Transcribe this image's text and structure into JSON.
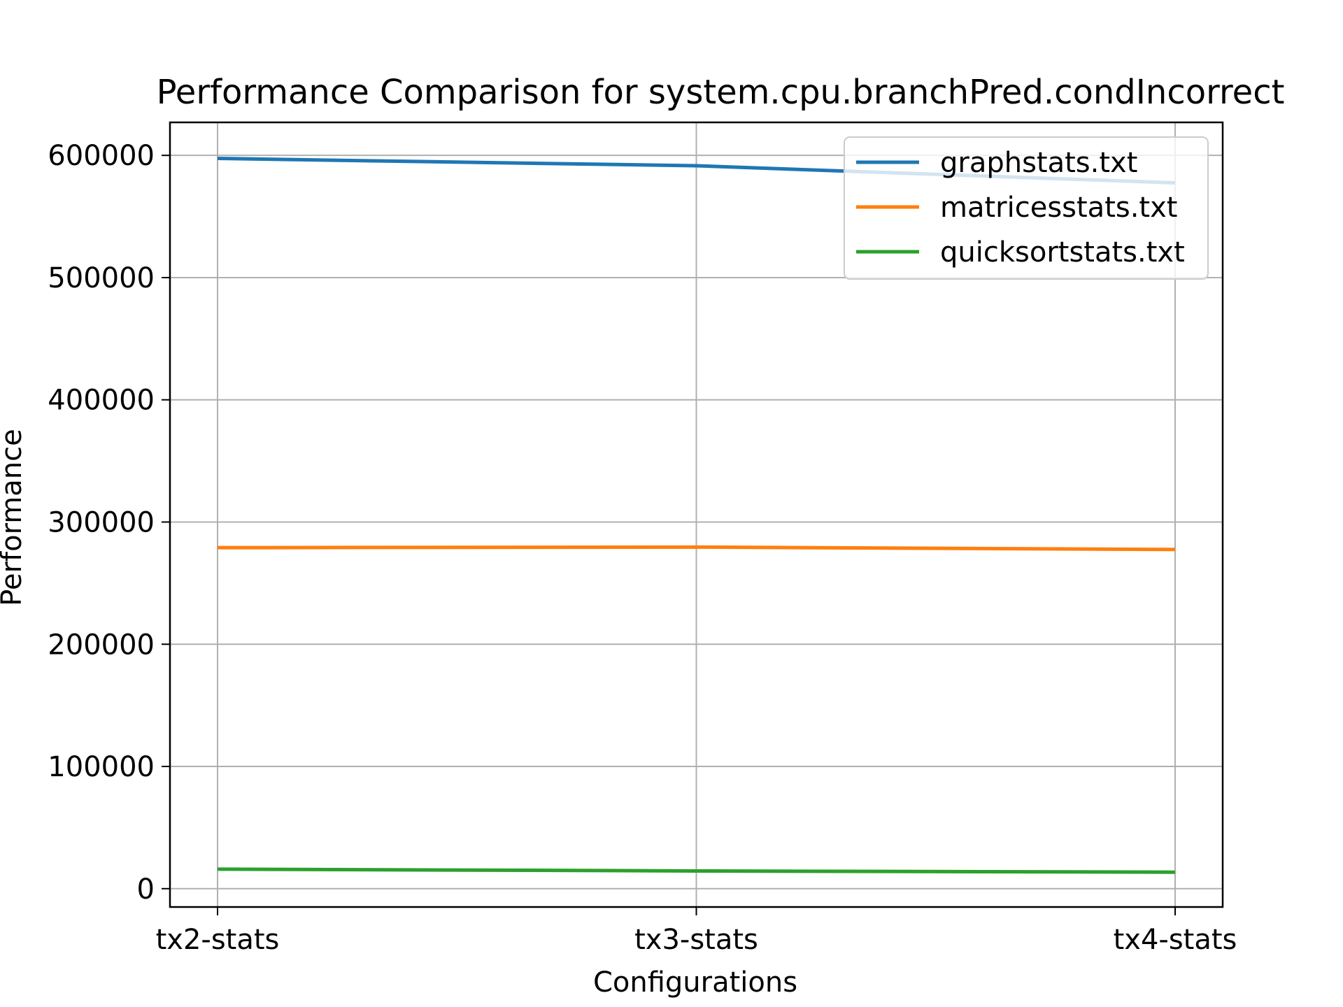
{
  "chart_data": {
    "type": "line",
    "title": "Performance Comparison for system.cpu.branchPred.condIncorrect",
    "xlabel": "Configurations",
    "ylabel": "Performance",
    "categories": [
      "tx2-stats",
      "tx3-stats",
      "tx4-stats"
    ],
    "ylim": [
      -15000,
      627000
    ],
    "yticks": [
      0,
      100000,
      200000,
      300000,
      400000,
      500000,
      600000
    ],
    "grid": true,
    "legend_position": "top-right",
    "series": [
      {
        "name": "graphstats.txt",
        "color": "#1f77b4",
        "values": [
          597500,
          591500,
          577500
        ]
      },
      {
        "name": "matricesstats.txt",
        "color": "#ff7f0e",
        "values": [
          279000,
          279500,
          277500
        ]
      },
      {
        "name": "quicksortstats.txt",
        "color": "#2ca02c",
        "values": [
          16000,
          14500,
          13500
        ]
      }
    ]
  }
}
